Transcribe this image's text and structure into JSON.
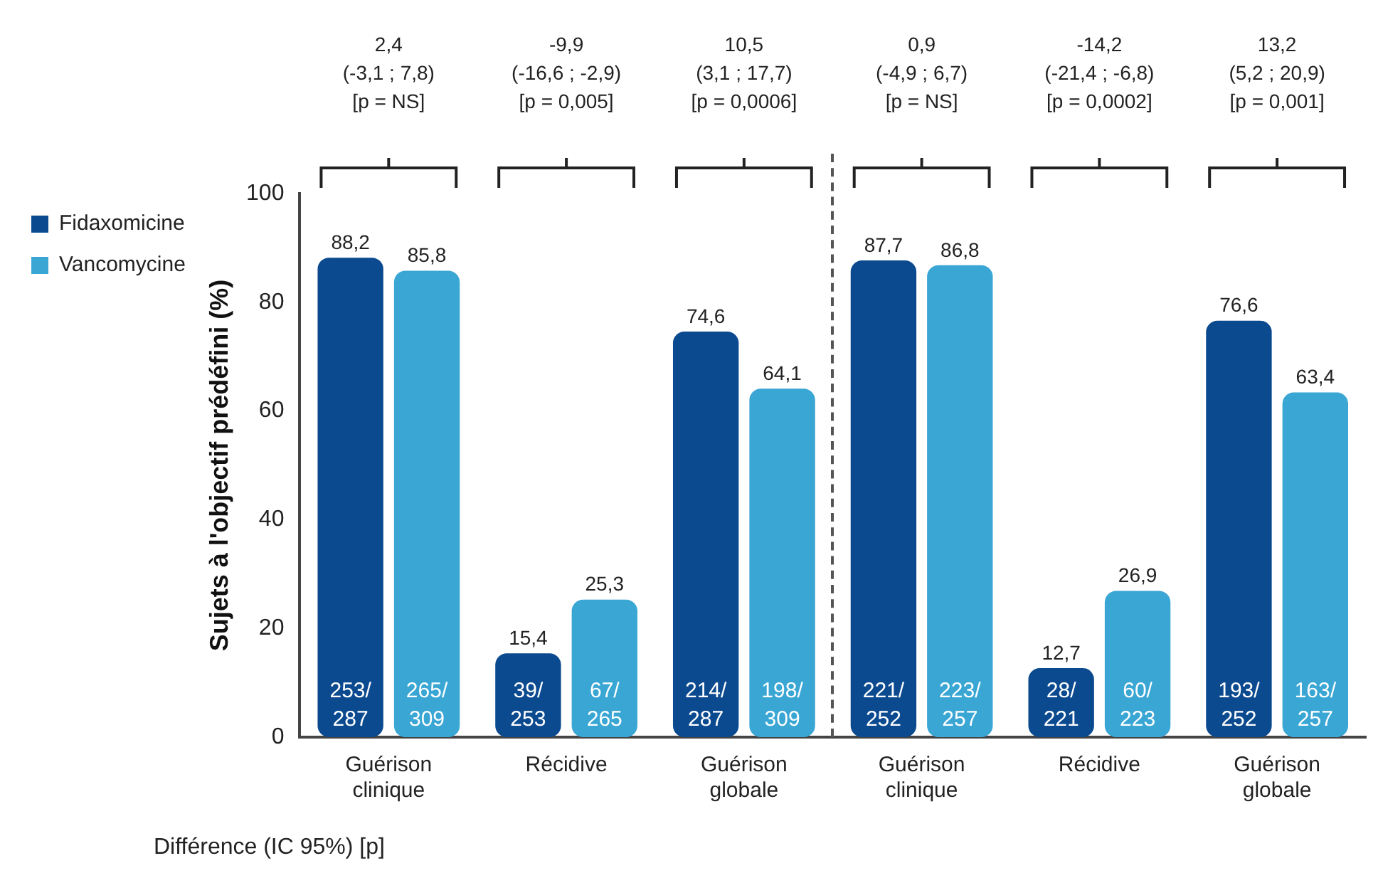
{
  "chart_data": {
    "type": "bar",
    "ylabel": "Sujets à l'objectif prédéfini (%)",
    "categories": [
      "Guérison clinique",
      "Récidive",
      "Guérison globale",
      "Guérison clinique",
      "Récidive",
      "Guérison globale"
    ],
    "series": [
      {
        "name": "Fidaxomicine",
        "color": "#0b4a8f",
        "values": [
          88.2,
          15.4,
          74.6,
          87.7,
          12.7,
          76.6
        ],
        "value_labels": [
          "88,2",
          "15,4",
          "74,6",
          "87,7",
          "12,7",
          "76,6"
        ]
      },
      {
        "name": "Vancomycine",
        "color": "#3aa6d4",
        "values": [
          85.8,
          25.3,
          64.1,
          86.8,
          26.9,
          63.4
        ],
        "value_labels": [
          "85,8",
          "25,3",
          "64,1",
          "86,8",
          "26,9",
          "63,4"
        ]
      }
    ],
    "ylim": [
      0,
      100
    ],
    "yticks": [
      0,
      20,
      40,
      60,
      80,
      100
    ],
    "grid": false,
    "legend": "top left",
    "annotations": [
      "2,4\n(-3,1 ; 7,8)\n[p = NS]",
      "-9,9\n(-16,6 ; -2,9)\n[p = 0,005]",
      "10,5\n(3,1 ; 17,7)\n[p = 0,0006]",
      "0,9\n(-4,9 ; 6,7)\n[p = NS]",
      "-14,2\n(-21,4 ; -6,8)\n[p = 0,0002]",
      "13,2\n(5,2 ; 20,9)\n[p = 0,001]",
      "253/287",
      "39/253",
      "214/287",
      "221/252",
      "28/221",
      "193/252",
      "265/309",
      "67/265",
      "198/309",
      "223/257",
      "60/223",
      "163/257",
      "Différence (IC 95%) [p]"
    ]
  }
}
